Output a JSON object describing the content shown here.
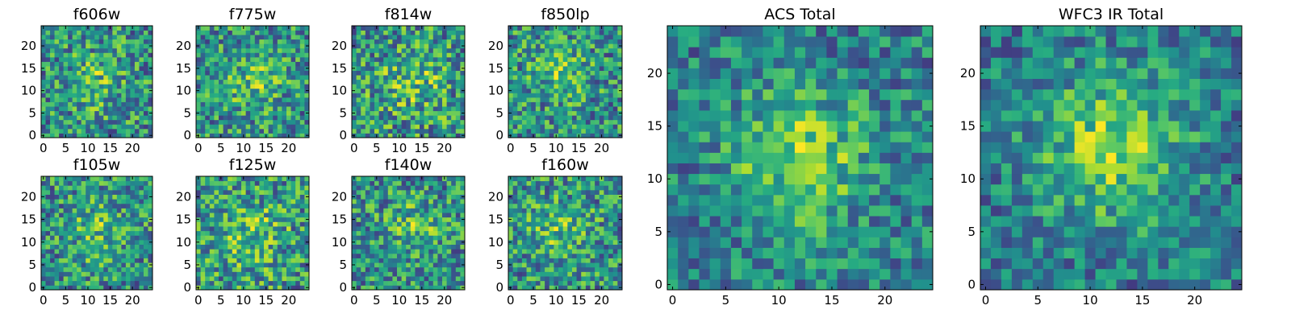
{
  "chart_data": [
    {
      "type": "heatmap",
      "title": "f606w",
      "n": 25,
      "xticks": [
        0,
        5,
        10,
        15,
        20
      ],
      "yticks": [
        0,
        5,
        10,
        15,
        20
      ],
      "xlim": [
        -0.5,
        24.5
      ],
      "ylim": [
        -0.5,
        24.5
      ],
      "colormap": "viridis",
      "noise": 0.9,
      "blob": {
        "cx": 12,
        "cy": 12,
        "sigma": 4.5,
        "amp": 0.25
      }
    },
    {
      "type": "heatmap",
      "title": "f775w",
      "n": 25,
      "xticks": [
        0,
        5,
        10,
        15,
        20
      ],
      "yticks": [
        0,
        5,
        10,
        15,
        20
      ],
      "xlim": [
        -0.5,
        24.5
      ],
      "ylim": [
        -0.5,
        24.5
      ],
      "colormap": "viridis",
      "noise": 0.9,
      "blob": {
        "cx": 12,
        "cy": 12,
        "sigma": 4.5,
        "amp": 0.28
      }
    },
    {
      "type": "heatmap",
      "title": "f814w",
      "n": 25,
      "xticks": [
        0,
        5,
        10,
        15,
        20
      ],
      "yticks": [
        0,
        5,
        10,
        15,
        20
      ],
      "xlim": [
        -0.5,
        24.5
      ],
      "ylim": [
        -0.5,
        24.5
      ],
      "colormap": "viridis",
      "noise": 0.9,
      "blob": {
        "cx": 13,
        "cy": 12,
        "sigma": 4.5,
        "amp": 0.25
      }
    },
    {
      "type": "heatmap",
      "title": "f850lp",
      "n": 25,
      "xticks": [
        0,
        5,
        10,
        15,
        20
      ],
      "yticks": [
        0,
        5,
        10,
        15,
        20
      ],
      "xlim": [
        -0.5,
        24.5
      ],
      "ylim": [
        -0.5,
        24.5
      ],
      "colormap": "viridis",
      "noise": 0.9,
      "blob": {
        "cx": 11,
        "cy": 14,
        "sigma": 4,
        "amp": 0.3
      }
    },
    {
      "type": "heatmap",
      "title": "f105w",
      "n": 25,
      "xticks": [
        0,
        5,
        10,
        15,
        20
      ],
      "yticks": [
        0,
        5,
        10,
        15,
        20
      ],
      "xlim": [
        -0.5,
        24.5
      ],
      "ylim": [
        -0.5,
        24.5
      ],
      "colormap": "viridis",
      "noise": 0.85,
      "blob": {
        "cx": 12,
        "cy": 12,
        "sigma": 4.5,
        "amp": 0.25
      }
    },
    {
      "type": "heatmap",
      "title": "f125w",
      "n": 25,
      "xticks": [
        0,
        5,
        10,
        15,
        20
      ],
      "yticks": [
        0,
        5,
        10,
        15,
        20
      ],
      "xlim": [
        -0.5,
        24.5
      ],
      "ylim": [
        -0.5,
        24.5
      ],
      "colormap": "viridis",
      "noise": 0.7,
      "blob": {
        "cx": 12,
        "cy": 12,
        "sigma": 5,
        "amp": 0.2
      }
    },
    {
      "type": "heatmap",
      "title": "f140w",
      "n": 25,
      "xticks": [
        0,
        5,
        10,
        15,
        20
      ],
      "yticks": [
        0,
        5,
        10,
        15,
        20
      ],
      "xlim": [
        -0.5,
        24.5
      ],
      "ylim": [
        -0.5,
        24.5
      ],
      "colormap": "viridis",
      "noise": 0.85,
      "blob": {
        "cx": 13,
        "cy": 13,
        "sigma": 5,
        "amp": 0.25
      }
    },
    {
      "type": "heatmap",
      "title": "f160w",
      "n": 25,
      "xticks": [
        0,
        5,
        10,
        15,
        20
      ],
      "yticks": [
        0,
        5,
        10,
        15,
        20
      ],
      "xlim": [
        -0.5,
        24.5
      ],
      "ylim": [
        -0.5,
        24.5
      ],
      "colormap": "viridis",
      "noise": 0.85,
      "blob": {
        "cx": 11,
        "cy": 12,
        "sigma": 5,
        "amp": 0.25
      }
    },
    {
      "type": "heatmap",
      "title": "ACS Total",
      "n": 25,
      "xticks": [
        0,
        5,
        10,
        15,
        20
      ],
      "yticks": [
        0,
        5,
        10,
        15,
        20
      ],
      "xlim": [
        -0.5,
        24.5
      ],
      "ylim": [
        -0.5,
        24.5
      ],
      "colormap": "viridis",
      "noise": 0.55,
      "blob": {
        "cx": 12,
        "cy": 12,
        "sigma": 4.5,
        "amp": 0.4
      }
    },
    {
      "type": "heatmap",
      "title": "WFC3 IR Total",
      "n": 25,
      "xticks": [
        0,
        5,
        10,
        15,
        20
      ],
      "yticks": [
        0,
        5,
        10,
        15,
        20
      ],
      "xlim": [
        -0.5,
        24.5
      ],
      "ylim": [
        -0.5,
        24.5
      ],
      "colormap": "viridis",
      "noise": 0.5,
      "blob": {
        "cx": 12,
        "cy": 13,
        "sigma": 5,
        "amp": 0.4
      }
    }
  ]
}
